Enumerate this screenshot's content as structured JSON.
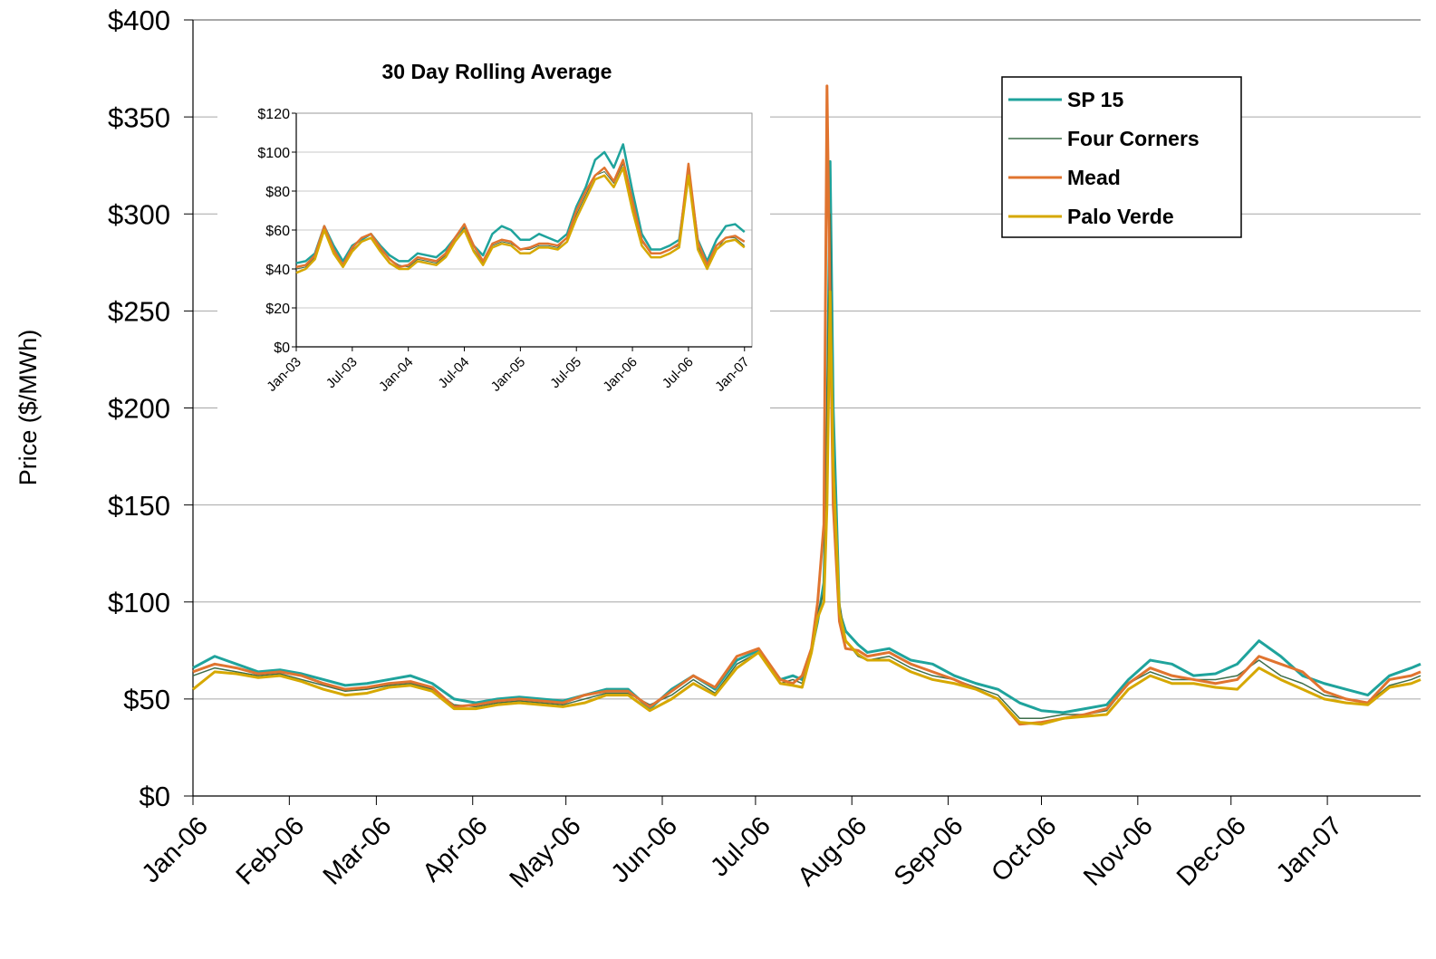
{
  "chart_data": [
    {
      "type": "line",
      "y_label": "Price ($/MWh)",
      "x": [
        0,
        7,
        14,
        21,
        28,
        35,
        42,
        49,
        56,
        63,
        70,
        77,
        84,
        91,
        98,
        105,
        112,
        119,
        126,
        133,
        140,
        147,
        154,
        161,
        168,
        175,
        182,
        189,
        193,
        196,
        199,
        201,
        203,
        204,
        205,
        206,
        208,
        210,
        214,
        217,
        224,
        231,
        238,
        245,
        252,
        259,
        266,
        273,
        280,
        287,
        294,
        301,
        308,
        315,
        322,
        329,
        336,
        343,
        350,
        357,
        364,
        371,
        378,
        385,
        392,
        395
      ],
      "xlim": [
        0,
        395
      ],
      "xticks": [
        {
          "value": 0,
          "label": "Jan-06"
        },
        {
          "value": 31,
          "label": "Feb-06"
        },
        {
          "value": 59,
          "label": "Mar-06"
        },
        {
          "value": 90,
          "label": "Apr-06"
        },
        {
          "value": 120,
          "label": "May-06"
        },
        {
          "value": 151,
          "label": "Jun-06"
        },
        {
          "value": 181,
          "label": "Jul-06"
        },
        {
          "value": 212,
          "label": "Aug-06"
        },
        {
          "value": 243,
          "label": "Sep-06"
        },
        {
          "value": 273,
          "label": "Oct-06"
        },
        {
          "value": 304,
          "label": "Nov-06"
        },
        {
          "value": 334,
          "label": "Dec-06"
        },
        {
          "value": 365,
          "label": "Jan-07"
        }
      ],
      "ylim": [
        0,
        400
      ],
      "yticks": [
        {
          "value": 0,
          "label": "$0"
        },
        {
          "value": 50,
          "label": "$50"
        },
        {
          "value": 100,
          "label": "$100"
        },
        {
          "value": 150,
          "label": "$150"
        },
        {
          "value": 200,
          "label": "$200"
        },
        {
          "value": 250,
          "label": "$250"
        },
        {
          "value": 300,
          "label": "$300"
        },
        {
          "value": 350,
          "label": "$350"
        },
        {
          "value": 400,
          "label": "$400"
        }
      ],
      "grid": true,
      "legend": "upper-right",
      "series": [
        {
          "name": "SP 15",
          "color": "#1fa39c",
          "width": 3,
          "values": [
            66,
            72,
            68,
            64,
            65,
            63,
            60,
            57,
            58,
            60,
            62,
            58,
            50,
            48,
            50,
            51,
            50,
            49,
            52,
            55,
            55,
            45,
            55,
            62,
            55,
            70,
            75,
            60,
            62,
            60,
            75,
            90,
            110,
            180,
            327,
            200,
            95,
            85,
            78,
            74,
            76,
            70,
            68,
            62,
            58,
            55,
            48,
            44,
            43,
            45,
            47,
            60,
            70,
            68,
            62,
            63,
            68,
            80,
            72,
            62,
            58,
            55,
            52,
            62,
            66,
            68
          ]
        },
        {
          "name": "Four Corners",
          "color": "#3d6e4a",
          "width": 1.5,
          "values": [
            62,
            66,
            64,
            62,
            63,
            60,
            57,
            54,
            55,
            57,
            58,
            55,
            47,
            46,
            48,
            49,
            48,
            47,
            50,
            53,
            53,
            47,
            52,
            60,
            53,
            68,
            74,
            58,
            60,
            58,
            75,
            95,
            105,
            200,
            300,
            180,
            100,
            80,
            72,
            70,
            72,
            66,
            62,
            60,
            56,
            52,
            40,
            40,
            42,
            42,
            44,
            58,
            64,
            60,
            60,
            60,
            62,
            70,
            62,
            58,
            52,
            50,
            48,
            57,
            60,
            62
          ]
        },
        {
          "name": "Mead",
          "color": "#e0742f",
          "width": 3,
          "values": [
            64,
            68,
            66,
            63,
            64,
            62,
            58,
            55,
            56,
            58,
            59,
            56,
            46,
            47,
            49,
            50,
            49,
            48,
            52,
            54,
            54,
            46,
            54,
            62,
            56,
            72,
            76,
            60,
            58,
            62,
            76,
            100,
            140,
            366,
            250,
            150,
            90,
            76,
            75,
            72,
            74,
            68,
            64,
            60,
            55,
            50,
            37,
            38,
            40,
            42,
            45,
            58,
            66,
            62,
            60,
            58,
            60,
            72,
            68,
            64,
            54,
            50,
            48,
            60,
            62,
            64
          ]
        },
        {
          "name": "Palo Verde",
          "color": "#d6a800",
          "width": 3,
          "values": [
            55,
            64,
            63,
            61,
            62,
            59,
            55,
            52,
            53,
            56,
            57,
            54,
            45,
            45,
            47,
            48,
            47,
            46,
            48,
            52,
            52,
            44,
            50,
            58,
            52,
            66,
            74,
            58,
            57,
            56,
            74,
            92,
            100,
            150,
            260,
            170,
            95,
            80,
            73,
            70,
            70,
            64,
            60,
            58,
            55,
            50,
            38,
            37,
            40,
            41,
            42,
            55,
            62,
            58,
            58,
            56,
            55,
            66,
            60,
            55,
            50,
            48,
            47,
            56,
            58,
            60
          ]
        }
      ]
    },
    {
      "type": "line",
      "title": "30 Day Rolling Average",
      "x": [
        0,
        1,
        2,
        3,
        4,
        5,
        6,
        7,
        8,
        9,
        10,
        11,
        12,
        13,
        14,
        15,
        16,
        17,
        18,
        19,
        20,
        21,
        22,
        23,
        24,
        25,
        26,
        27,
        28,
        29,
        30,
        31,
        32,
        33,
        34,
        35,
        36,
        37,
        38,
        39,
        40,
        41,
        42,
        43,
        44,
        45,
        46,
        47,
        48
      ],
      "xlim": [
        0,
        48.8
      ],
      "xticks": [
        {
          "value": 0,
          "label": "Jan-03"
        },
        {
          "value": 6,
          "label": "Jul-03"
        },
        {
          "value": 12,
          "label": "Jan-04"
        },
        {
          "value": 18,
          "label": "Jul-04"
        },
        {
          "value": 24,
          "label": "Jan-05"
        },
        {
          "value": 30,
          "label": "Jul-05"
        },
        {
          "value": 36,
          "label": "Jan-06"
        },
        {
          "value": 42,
          "label": "Jul-06"
        },
        {
          "value": 48,
          "label": "Jan-07"
        }
      ],
      "ylim": [
        0,
        120
      ],
      "yticks": [
        {
          "value": 0,
          "label": "$0"
        },
        {
          "value": 20,
          "label": "$20"
        },
        {
          "value": 40,
          "label": "$40"
        },
        {
          "value": 60,
          "label": "$60"
        },
        {
          "value": 80,
          "label": "$80"
        },
        {
          "value": 100,
          "label": "$100"
        },
        {
          "value": 120,
          "label": "$120"
        }
      ],
      "grid": true,
      "series": [
        {
          "color": "#1fa39c",
          "width": 2.5,
          "values": [
            43,
            44,
            48,
            62,
            52,
            44,
            52,
            55,
            58,
            52,
            47,
            44,
            44,
            48,
            47,
            46,
            50,
            56,
            62,
            52,
            47,
            58,
            62,
            60,
            55,
            55,
            58,
            56,
            54,
            58,
            72,
            82,
            96,
            100,
            92,
            104,
            80,
            58,
            50,
            50,
            52,
            55,
            90,
            55,
            44,
            55,
            62,
            63,
            59
          ]
        },
        {
          "color": "#3d6e4a",
          "width": 1,
          "values": [
            40,
            41,
            46,
            60,
            50,
            42,
            50,
            54,
            56,
            50,
            45,
            42,
            41,
            45,
            44,
            43,
            47,
            54,
            61,
            50,
            43,
            52,
            54,
            53,
            50,
            50,
            52,
            52,
            51,
            56,
            68,
            78,
            88,
            90,
            84,
            94,
            72,
            54,
            48,
            48,
            50,
            52,
            88,
            52,
            40,
            50,
            56,
            56,
            52
          ]
        },
        {
          "color": "#e0742f",
          "width": 2.5,
          "values": [
            41,
            42,
            47,
            62,
            50,
            42,
            51,
            56,
            58,
            51,
            45,
            41,
            42,
            46,
            45,
            44,
            48,
            56,
            63,
            52,
            44,
            53,
            55,
            54,
            50,
            51,
            53,
            53,
            52,
            56,
            70,
            80,
            88,
            92,
            85,
            96,
            75,
            55,
            48,
            48,
            50,
            53,
            94,
            54,
            42,
            52,
            56,
            57,
            54
          ]
        },
        {
          "color": "#d6a800",
          "width": 2.5,
          "values": [
            38,
            40,
            45,
            60,
            48,
            41,
            49,
            54,
            56,
            49,
            43,
            40,
            40,
            44,
            43,
            42,
            46,
            54,
            60,
            49,
            42,
            51,
            53,
            52,
            48,
            48,
            51,
            51,
            50,
            54,
            66,
            76,
            86,
            88,
            82,
            92,
            70,
            52,
            46,
            46,
            48,
            51,
            88,
            50,
            40,
            50,
            54,
            55,
            51
          ]
        }
      ]
    }
  ]
}
